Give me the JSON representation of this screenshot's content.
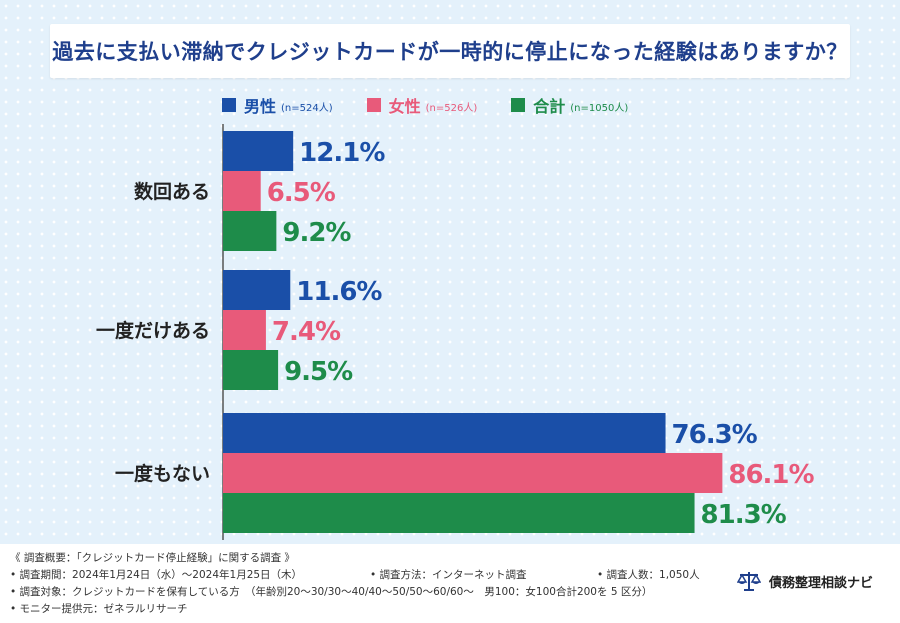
{
  "title": "過去に支払い滞納でクレジットカードが一時的に停止になった経験はありますか？",
  "legend": [
    {
      "name": "男性",
      "n": "(n=524人)",
      "color": "#1a4fa8"
    },
    {
      "name": "女性",
      "n": "(n=526人)",
      "color": "#e85a7a"
    },
    {
      "name": "合計",
      "n": "(n=1050人)",
      "color": "#1e8c4a"
    }
  ],
  "chart_data": {
    "type": "bar",
    "orientation": "horizontal",
    "title": "過去に支払い滞納でクレジットカードが一時的に停止になった経験はありますか？",
    "categories": [
      "数回ある",
      "一度だけある",
      "一度もない"
    ],
    "series": [
      {
        "name": "男性",
        "values": [
          12.1,
          11.6,
          76.3
        ],
        "labels": [
          "12.1%",
          "11.6%",
          "76.3%"
        ],
        "color": "#1a4fa8"
      },
      {
        "name": "女性",
        "values": [
          6.5,
          7.4,
          86.1
        ],
        "labels": [
          "6.5%",
          "7.4%",
          "86.1%"
        ],
        "color": "#e85a7a"
      },
      {
        "name": "合計",
        "values": [
          9.2,
          9.5,
          81.3
        ],
        "labels": [
          "9.2%",
          "9.5%",
          "81.3%"
        ],
        "color": "#1e8c4a"
      }
    ],
    "xlim": [
      0,
      100
    ],
    "grid": false,
    "legend_position": "top"
  },
  "footer": {
    "overview": "《 調査概要：「クレジットカード停止経験」に関する調査 》",
    "period": "• 調査期間：2024年1月24日（水）〜2024年1月25日（木）",
    "method": "• 調査方法：インターネット調査",
    "count": "• 調査人数：1,050人",
    "target": "• 調査対象：クレジットカードを保有している方　（年齢別20〜30/30〜40/40〜50/50〜60/60〜　男100：女100合計200を 5 区分）",
    "provider": "• モニター提供元：ゼネラルリサーチ",
    "brand": "債務整理相談ナビ"
  }
}
